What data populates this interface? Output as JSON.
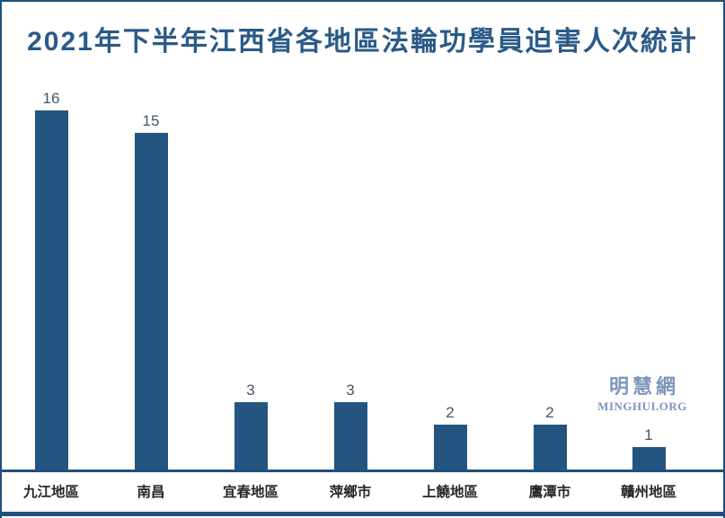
{
  "page": {
    "background_color": "#FFFFFF",
    "border_color": "#21507C"
  },
  "chart_data": {
    "type": "bar",
    "title": "2021年下半年江西省各地區法輪功學員迫害人次統計",
    "title_color": "#2A5A87",
    "categories": [
      "九江地區",
      "南昌",
      "宜春地區",
      "萍鄉市",
      "上饒地區",
      "鷹潭市",
      "贛州地區"
    ],
    "values": [
      16,
      15,
      3,
      3,
      2,
      2,
      1
    ],
    "bar_color": "#235580",
    "value_label_color": "#44546A",
    "category_label_color": "#262626",
    "axis_line_color": "#21507C",
    "xlabel": "",
    "ylabel": "",
    "ylim": [
      0,
      16
    ],
    "grid": false,
    "legend": "none",
    "value_labels_shown": true
  },
  "watermark": {
    "cjk": "明慧網",
    "latin": "MINGHUI.ORG",
    "color": "#7E96BB"
  }
}
